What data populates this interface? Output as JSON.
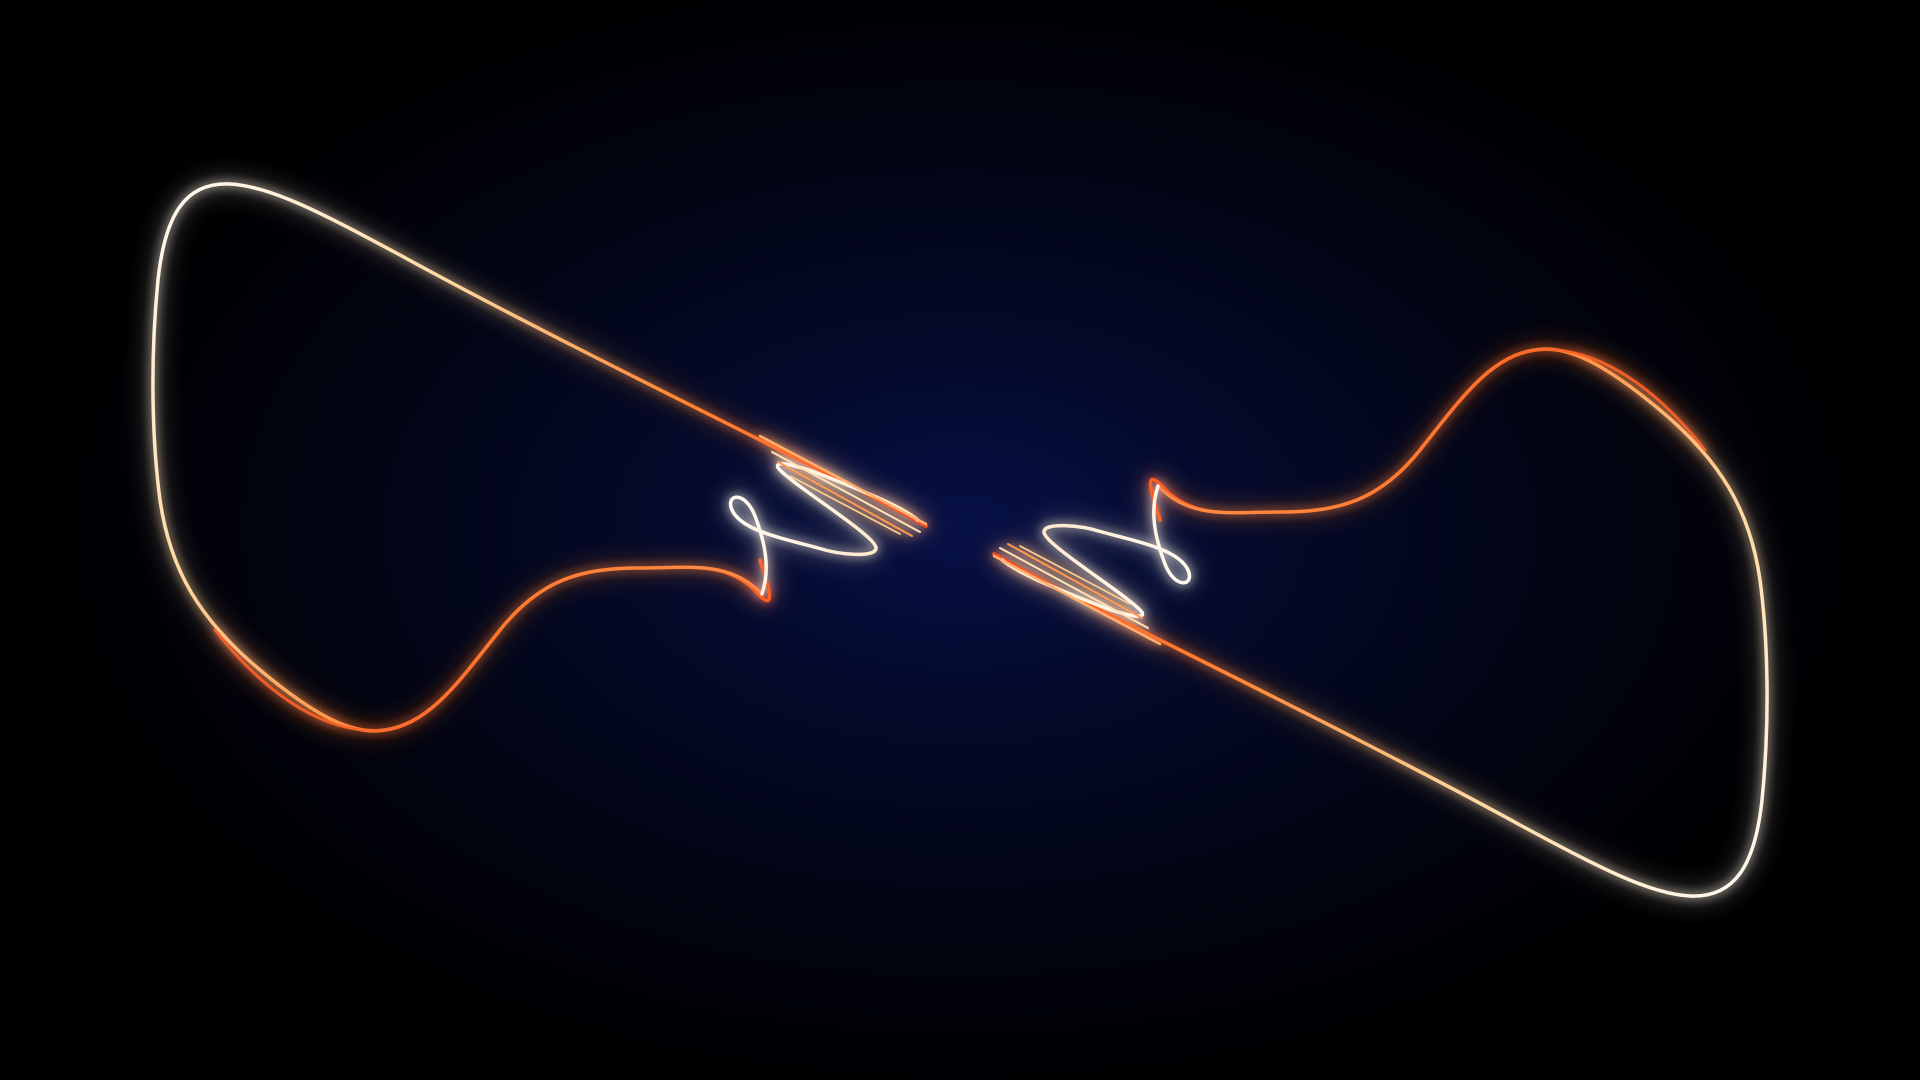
{
  "scene": {
    "background_center": "#071046",
    "background_edge": "#000002",
    "strand_colors": {
      "core": "#fffdf5",
      "warm": "#ffd8a0",
      "hot": "#ff8a3a",
      "deep": "#ff4a1a"
    }
  },
  "shapes": [
    {
      "name": "left-loop-strand",
      "mirrored": false
    },
    {
      "name": "right-loop-strand",
      "mirrored": true
    }
  ]
}
